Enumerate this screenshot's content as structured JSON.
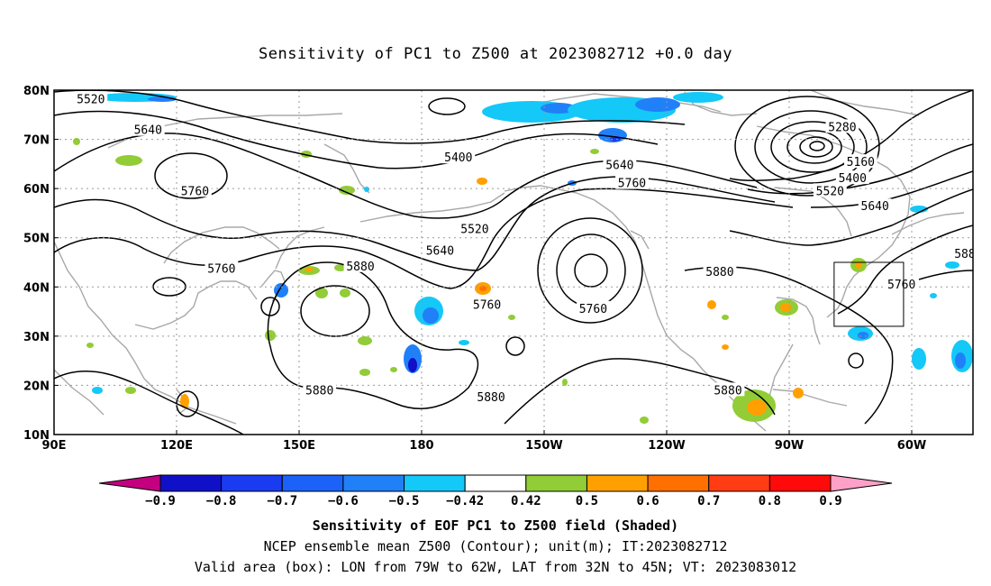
{
  "title": "Sensitivity of PC1 to Z500 at 2023082712 +0.0 day",
  "map": {
    "projection": "cylindrical-equidistant",
    "lon_range": [
      90,
      315
    ],
    "lat_range": [
      10,
      80
    ],
    "lat_labels": [
      "80N",
      "70N",
      "60N",
      "50N",
      "40N",
      "30N",
      "20N",
      "10N"
    ],
    "lon_labels": [
      "90E",
      "120E",
      "150E",
      "180",
      "150W",
      "120W",
      "90W",
      "60W"
    ],
    "grid": true,
    "coastline_color": "#a8a8a8",
    "contour_color": "#000000"
  },
  "contour_labels": [
    {
      "text": "5520",
      "lon": 99,
      "lat": 78.3
    },
    {
      "text": "5640",
      "lon": 113,
      "lat": 72.0
    },
    {
      "text": "5760",
      "lon": 124.5,
      "lat": 59.6
    },
    {
      "text": "5760",
      "lon": 131,
      "lat": 43.8
    },
    {
      "text": "5880",
      "lon": 165,
      "lat": 44.3
    },
    {
      "text": "5880",
      "lon": 155,
      "lat": 19.1
    },
    {
      "text": "5400",
      "lon": 189,
      "lat": 66.4
    },
    {
      "text": "5520",
      "lon": 193,
      "lat": 51.9
    },
    {
      "text": "5640",
      "lon": 184.5,
      "lat": 47.5
    },
    {
      "text": "5760",
      "lon": 196,
      "lat": 36.5
    },
    {
      "text": "5880",
      "lon": 197,
      "lat": 17.7
    },
    {
      "text": "5640",
      "lon": 228.5,
      "lat": 64.9
    },
    {
      "text": "5760",
      "lon": 231.5,
      "lat": 61.2
    },
    {
      "text": "5760",
      "lon": 222,
      "lat": 35.7
    },
    {
      "text": "5880",
      "lon": 253,
      "lat": 43.2
    },
    {
      "text": "5880",
      "lon": 255,
      "lat": 19.1
    },
    {
      "text": "5280",
      "lon": 283,
      "lat": 72.6
    },
    {
      "text": "5160",
      "lon": 287.5,
      "lat": 65.5
    },
    {
      "text": "5400",
      "lon": 285.5,
      "lat": 62.2
    },
    {
      "text": "5520",
      "lon": 280,
      "lat": 59.6
    },
    {
      "text": "5640",
      "lon": 291,
      "lat": 56.5
    },
    {
      "text": "5760",
      "lon": 297.5,
      "lat": 40.6
    },
    {
      "text": "588",
      "lon": 313,
      "lat": 46.8
    }
  ],
  "valid_box": {
    "lon_min": 281,
    "lon_max": 298,
    "lat_min": 32,
    "lat_max": 45
  },
  "colorbar": {
    "colors": [
      "#c40080",
      "#1010c8",
      "#1a3cf0",
      "#1c62f8",
      "#2080f8",
      "#14c8f8",
      "#ffffff",
      "#92cc36",
      "#ffa000",
      "#ff7000",
      "#ff3c14",
      "#ff0a0a",
      "#ffa0c8"
    ],
    "labels": [
      "−0.9",
      "−0.8",
      "−0.7",
      "−0.6",
      "−0.5",
      "−0.42",
      "0.42",
      "0.5",
      "0.6",
      "0.7",
      "0.8",
      "0.9"
    ]
  },
  "captions": {
    "line1": "Sensitivity of EOF PC1 to Z500 field (Shaded)",
    "line2": "NCEP ensemble mean Z500 (Contour); unit(m); IT:2023082712",
    "line3": "Valid area (box): LON from 79W to 62W, LAT from 32N to 45N; VT: 2023083012"
  }
}
